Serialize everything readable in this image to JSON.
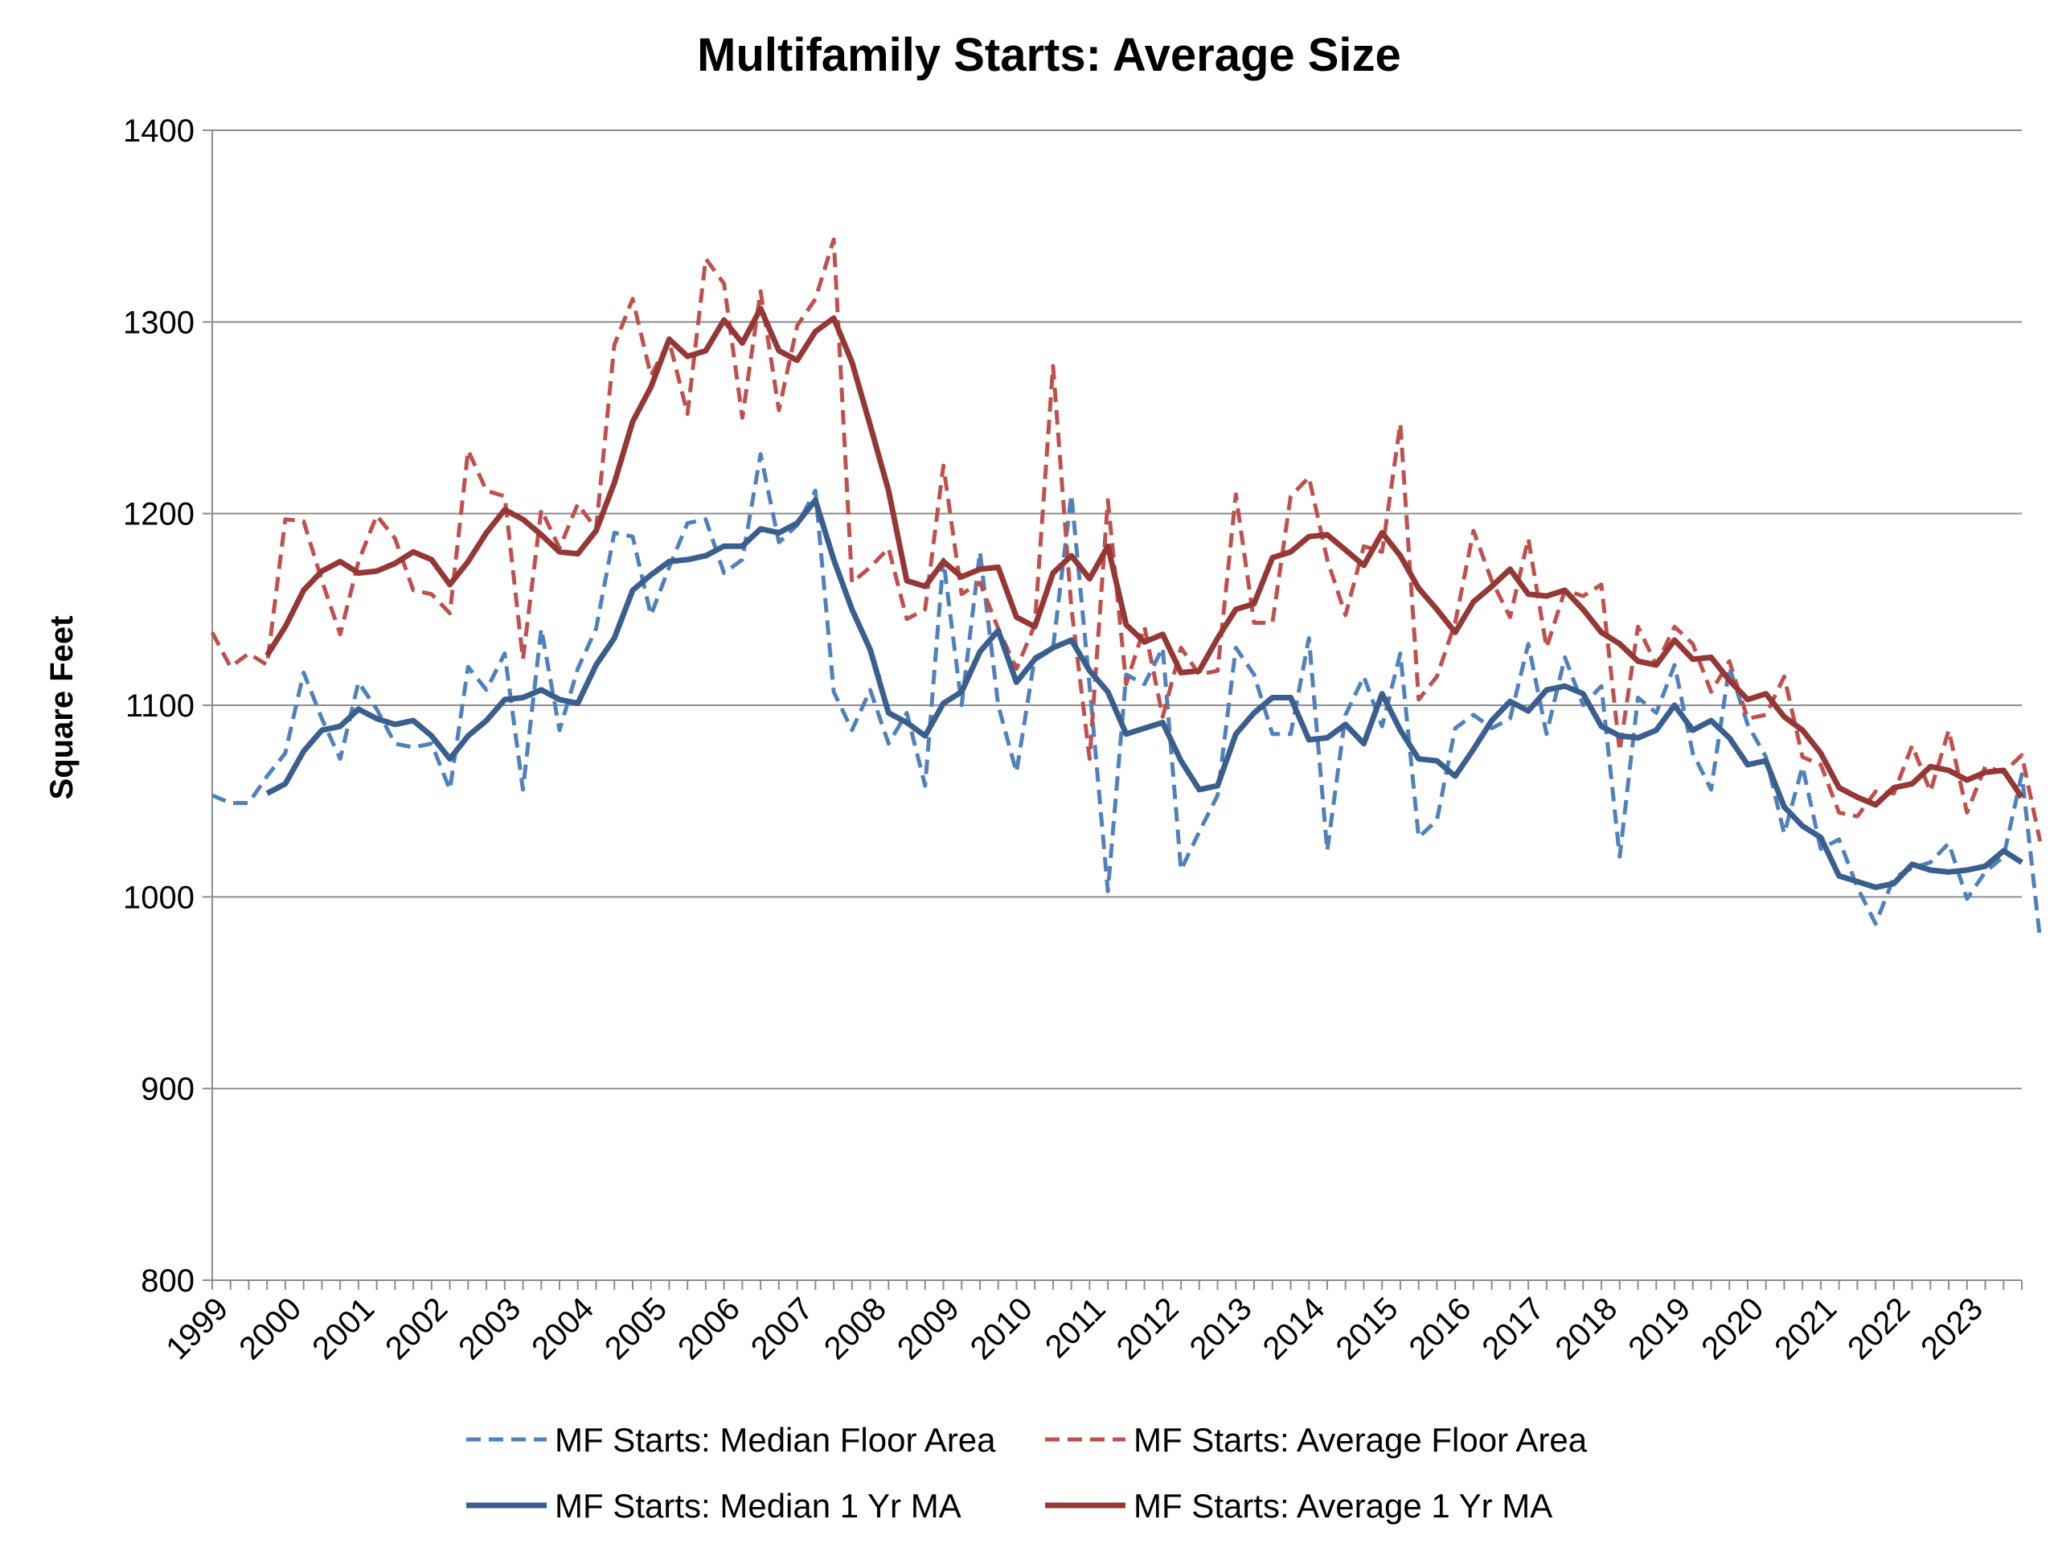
{
  "chart_data": {
    "type": "line",
    "title": "Multifamily Starts: Average Size",
    "xlabel": "",
    "ylabel": "Square Feet",
    "ylim": [
      800,
      1400
    ],
    "yticks": [
      "800",
      "900",
      "1000",
      "1100",
      "1200",
      "1300",
      "1400"
    ],
    "xlim": [
      1999.0,
      2023.75
    ],
    "x_tick_labels": [
      "1999",
      "2000",
      "2001",
      "2002",
      "2003",
      "2004",
      "2005",
      "2006",
      "2007",
      "2008",
      "2009",
      "2010",
      "2011",
      "2012",
      "2013",
      "2014",
      "2015",
      "2016",
      "2017",
      "2018",
      "2019",
      "2020",
      "2021",
      "2022",
      "2023"
    ],
    "x_start": 1999.0,
    "x_step": 0.25,
    "grid": true,
    "legend_position": "bottom",
    "series": [
      {
        "name": "MF Starts: Median Floor Area",
        "color": "#4F81BD",
        "style": "dashed",
        "width": 5,
        "values": [
          1053,
          1049,
          1049,
          1063,
          1075,
          1117,
          1093,
          1072,
          1112,
          1098,
          1080,
          1078,
          1080,
          1056,
          1120,
          1108,
          1127,
          1056,
          1140,
          1087,
          1119,
          1140,
          1190,
          1188,
          1147,
          1172,
          1195,
          1197,
          1169,
          1176,
          1231,
          1185,
          1194,
          1212,
          1107,
          1087,
          1108,
          1080,
          1096,
          1058,
          1176,
          1100,
          1180,
          1100,
          1065,
          1125,
          1130,
          1210,
          1110,
          1003,
          1116,
          1111,
          1130,
          1014,
          1034,
          1053,
          1130,
          1116,
          1085,
          1085,
          1135,
          1024,
          1095,
          1115,
          1089,
          1127,
          1031,
          1040,
          1088,
          1095,
          1088,
          1093,
          1132,
          1085,
          1125,
          1100,
          1110,
          1021,
          1104,
          1096,
          1121,
          1075,
          1056,
          1120,
          1090,
          1073,
          1033,
          1068,
          1025,
          1030,
          1005,
          986,
          1010,
          1015,
          1018,
          1028,
          999,
          1013,
          1021,
          1064,
          978
        ]
      },
      {
        "name": "MF Starts: Average Floor Area",
        "color": "#C0504D",
        "style": "dashed",
        "width": 5,
        "values": [
          1138,
          1120,
          1127,
          1121,
          1197,
          1196,
          1165,
          1137,
          1175,
          1199,
          1187,
          1160,
          1158,
          1148,
          1233,
          1212,
          1209,
          1124,
          1202,
          1182,
          1205,
          1192,
          1288,
          1312,
          1272,
          1290,
          1252,
          1333,
          1320,
          1250,
          1316,
          1254,
          1298,
          1312,
          1343,
          1164,
          1172,
          1182,
          1145,
          1150,
          1225,
          1158,
          1164,
          1140,
          1119,
          1142,
          1277,
          1151,
          1072,
          1207,
          1111,
          1141,
          1094,
          1130,
          1116,
          1118,
          1210,
          1143,
          1143,
          1209,
          1219,
          1176,
          1147,
          1183,
          1180,
          1247,
          1103,
          1115,
          1143,
          1191,
          1165,
          1146,
          1187,
          1130,
          1160,
          1157,
          1163,
          1076,
          1141,
          1121,
          1141,
          1132,
          1107,
          1123,
          1093,
          1095,
          1115,
          1073,
          1069,
          1044,
          1042,
          1055,
          1054,
          1079,
          1055,
          1087,
          1044,
          1068,
          1065,
          1074,
          1029
        ]
      },
      {
        "name": "MF Starts: Median 1 Yr MA",
        "color": "#3A5F8F",
        "style": "solid",
        "width": 7,
        "x_offset": 3,
        "values": [
          1054,
          1059,
          1076,
          1087,
          1089,
          1098,
          1093,
          1090,
          1092,
          1084,
          1072,
          1084,
          1092,
          1103,
          1104,
          1108,
          1103,
          1101,
          1121,
          1135,
          1160,
          1168,
          1175,
          1176,
          1178,
          1183,
          1183,
          1192,
          1190,
          1195,
          1207,
          1176,
          1150,
          1129,
          1096,
          1091,
          1084,
          1101,
          1107,
          1128,
          1139,
          1112,
          1124,
          1130,
          1134,
          1118,
          1107,
          1085,
          1088,
          1091,
          1071,
          1056,
          1058,
          1085,
          1096,
          1104,
          1104,
          1082,
          1083,
          1090,
          1080,
          1106,
          1087,
          1072,
          1071,
          1063,
          1077,
          1092,
          1102,
          1097,
          1108,
          1110,
          1106,
          1089,
          1084,
          1083,
          1087,
          1100,
          1087,
          1092,
          1083,
          1069,
          1071,
          1047,
          1037,
          1031,
          1011,
          1008,
          1005,
          1007,
          1017,
          1014,
          1013,
          1014,
          1016,
          1024,
          1018
        ]
      },
      {
        "name": "MF Starts: Average 1 Yr MA",
        "color": "#953735",
        "style": "solid",
        "width": 7,
        "x_offset": 3,
        "values": [
          1126,
          1141,
          1160,
          1170,
          1175,
          1169,
          1170,
          1174,
          1180,
          1176,
          1163,
          1175,
          1190,
          1202,
          1197,
          1189,
          1180,
          1179,
          1191,
          1216,
          1248,
          1266,
          1291,
          1282,
          1285,
          1301,
          1289,
          1307,
          1285,
          1280,
          1295,
          1302,
          1279,
          1246,
          1212,
          1165,
          1162,
          1175,
          1167,
          1171,
          1172,
          1146,
          1141,
          1169,
          1178,
          1166,
          1183,
          1142,
          1133,
          1137,
          1117,
          1118,
          1135,
          1150,
          1153,
          1177,
          1180,
          1188,
          1189,
          1181,
          1173,
          1190,
          1178,
          1161,
          1150,
          1138,
          1154,
          1162,
          1171,
          1158,
          1157,
          1160,
          1150,
          1138,
          1132,
          1123,
          1121,
          1134,
          1124,
          1125,
          1113,
          1103,
          1106,
          1094,
          1087,
          1075,
          1057,
          1052,
          1048,
          1057,
          1059,
          1068,
          1066,
          1061,
          1065,
          1066,
          1052
        ]
      }
    ]
  }
}
